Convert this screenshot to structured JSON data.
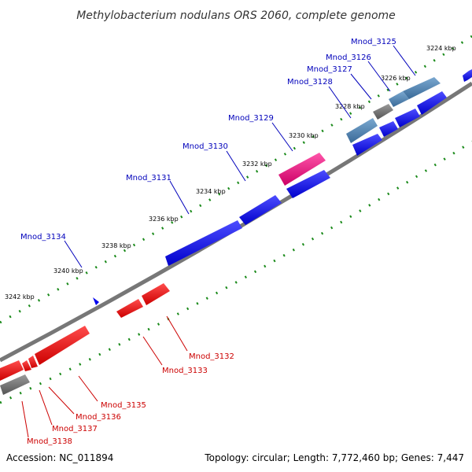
{
  "title": "Methylobacterium nodulans ORS 2060, complete genome",
  "accession": "Accession: NC_011894",
  "summary": "Topology: circular; Length: 7,772,460 bp; Genes: 7,447",
  "ticks": [
    "3224 kbp",
    "3226 kbp",
    "3228 kbp",
    "3230 kbp",
    "3232 kbp",
    "3234 kbp",
    "3236 kbp",
    "3238 kbp",
    "3240 kbp",
    "3242 kbp"
  ],
  "colors": {
    "forward": "#0000ee",
    "reverse": "#ee0000",
    "rna": "#4a7ab0",
    "pseudo": "#707070",
    "other": "#ee1177",
    "backbone": "#888888",
    "tick": "#1a8a1a",
    "forward_label": "#0000bb",
    "reverse_label": "#cc0000"
  },
  "forward_labels": [
    "Mnod_3125",
    "Mnod_3126",
    "Mnod_3127",
    "Mnod_3128",
    "Mnod_3129",
    "Mnod_3130",
    "Mnod_3131",
    "Mnod_3134"
  ],
  "reverse_labels": [
    "Mnod_3132",
    "Mnod_3133",
    "Mnod_3135",
    "Mnod_3136",
    "Mnod_3137",
    "Mnod_3138"
  ]
}
